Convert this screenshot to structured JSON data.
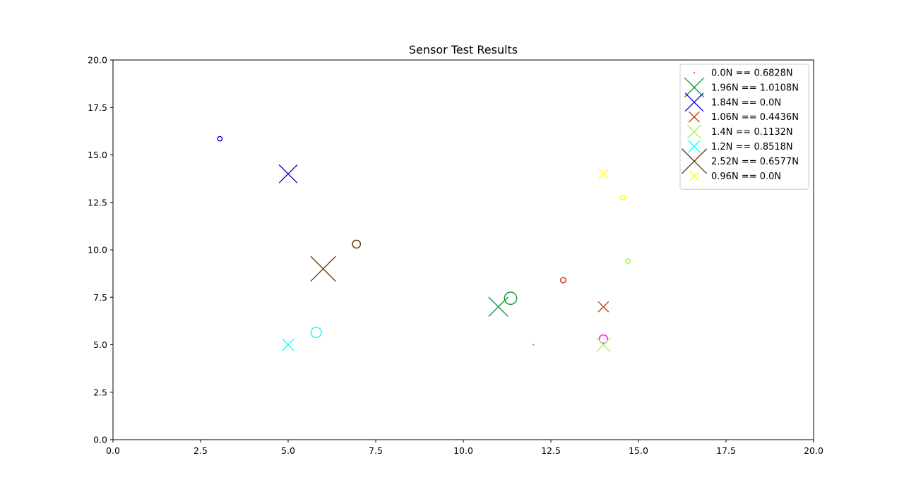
{
  "chart_data": {
    "type": "scatter",
    "title": "Sensor Test Results",
    "xlabel": "",
    "ylabel": "",
    "xlim": [
      0,
      20
    ],
    "ylim": [
      0,
      20
    ],
    "xticks": [
      "0.0",
      "2.5",
      "5.0",
      "7.5",
      "10.0",
      "12.5",
      "15.0",
      "17.5",
      "20.0"
    ],
    "yticks": [
      "0.0",
      "2.5",
      "5.0",
      "7.5",
      "10.0",
      "12.5",
      "15.0",
      "17.5",
      "20.0"
    ],
    "grid": false,
    "legend_position": "top-right",
    "series": [
      {
        "name": "0.0N == 0.6828N",
        "color": "#ff00ff",
        "applied": {
          "x": 12,
          "y": 5,
          "force": 0.0
        },
        "measured": {
          "x": 14,
          "y": 5.3,
          "force": 0.6828
        }
      },
      {
        "name": "1.96N == 1.0108N",
        "color": "#009933",
        "applied": {
          "x": 11,
          "y": 7,
          "force": 1.96
        },
        "measured": {
          "x": 11.35,
          "y": 7.45,
          "force": 1.0108
        }
      },
      {
        "name": "1.84N == 0.0N",
        "color": "#0000cc",
        "applied": {
          "x": 5,
          "y": 14,
          "force": 1.84
        },
        "measured": {
          "x": 3.05,
          "y": 15.85,
          "force": 0.0
        }
      },
      {
        "name": "1.06N == 0.4436N",
        "color": "#cc3300",
        "applied": {
          "x": 14,
          "y": 7,
          "force": 1.06
        },
        "measured": {
          "x": 12.85,
          "y": 8.4,
          "force": 0.4436
        }
      },
      {
        "name": "1.4N == 0.1132N",
        "color": "#99ff33",
        "applied": {
          "x": 14,
          "y": 5,
          "force": 1.4
        },
        "measured": {
          "x": 14.7,
          "y": 9.4,
          "force": 0.1132
        }
      },
      {
        "name": "1.2N == 0.8518N",
        "color": "#00ffff",
        "applied": {
          "x": 5,
          "y": 5,
          "force": 1.2
        },
        "measured": {
          "x": 5.8,
          "y": 5.65,
          "force": 0.8518
        }
      },
      {
        "name": "2.52N == 0.6577N",
        "color": "#663300",
        "applied": {
          "x": 6,
          "y": 9,
          "force": 2.52
        },
        "measured": {
          "x": 6.95,
          "y": 10.3,
          "force": 0.6577
        }
      },
      {
        "name": "0.96N == 0.0N",
        "color": "#ffff00",
        "applied": {
          "x": 14,
          "y": 14,
          "force": 0.96
        },
        "measured": {
          "x": 14.55,
          "y": 12.75,
          "force": 0.0
        }
      }
    ]
  }
}
